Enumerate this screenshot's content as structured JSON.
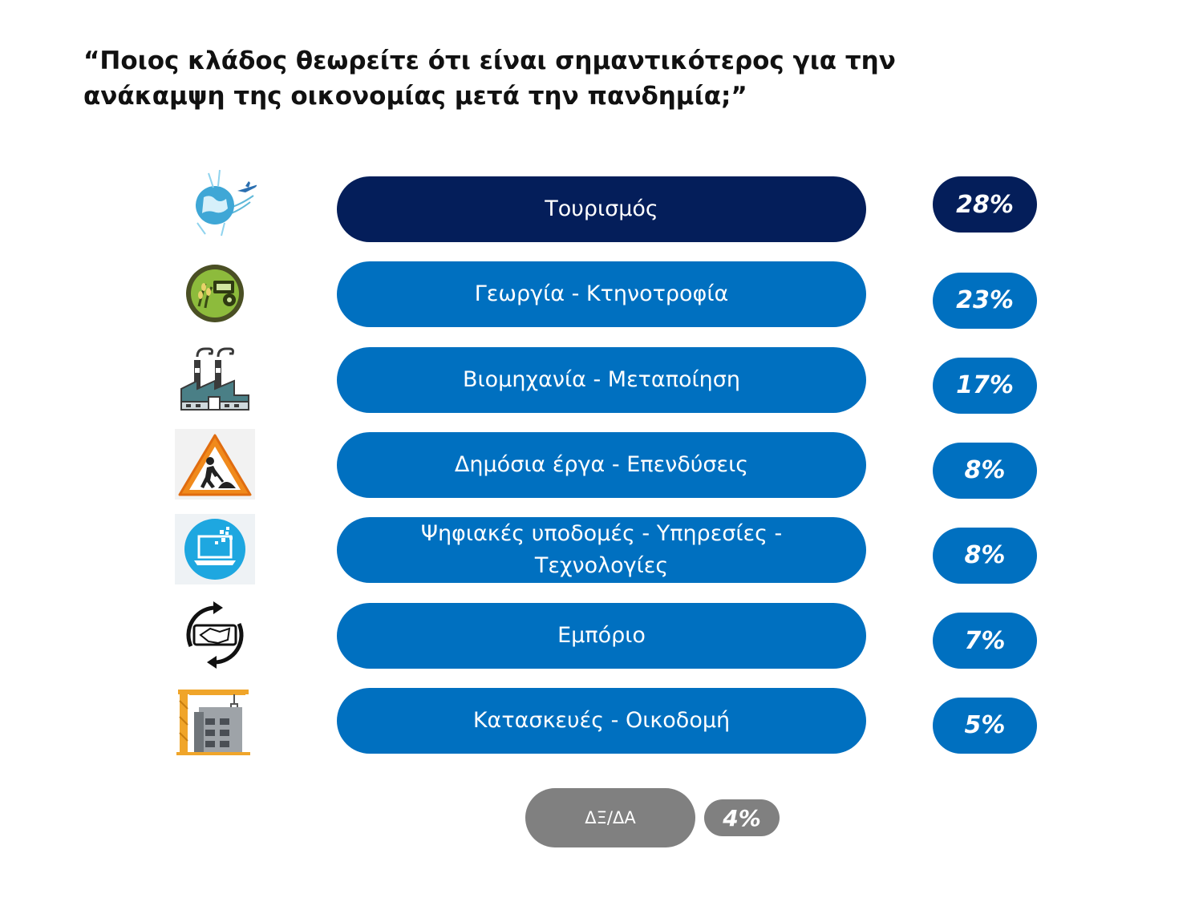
{
  "title": "“Ποιος κλάδος θεωρείτε ότι είναι σημαντικότερος για την ανάκαμψη της οικονομίας μετά την πανδημία;”",
  "colors": {
    "top": "#041E5A",
    "bar": "#0070C0",
    "na": "#808080"
  },
  "chart_data": {
    "type": "bar",
    "orientation": "horizontal",
    "title": "“Ποιος κλάδος θεωρείτε ότι είναι σημαντικότερος για την ανάκαμψη της οικονομίας μετά την πανδημία;”",
    "unit": "%",
    "categories": [
      "Τουρισμός",
      "Γεωργία - Κτηνοτροφία",
      "Βιομηχανία - Μεταποίηση",
      "Δημόσια έργα - Επενδύσεις",
      "Ψηφιακές υποδομές - Υπηρεσίες - Τεχνολογίες",
      "Εμπόριο",
      "Κατασκευές - Οικοδομή"
    ],
    "values": [
      28,
      23,
      17,
      8,
      8,
      7,
      5
    ],
    "value_labels": [
      "28%",
      "23%",
      "17%",
      "8%",
      "8%",
      "7%",
      "5%"
    ],
    "icons": [
      "globe-plane-icon",
      "tractor-wheat-icon",
      "factory-icon",
      "road-work-sign-icon",
      "laptop-icon",
      "handshake-cycle-icon",
      "crane-building-icon"
    ],
    "na": {
      "label": "ΔΞ/ΔΑ",
      "value": 4,
      "value_label": "4%"
    }
  }
}
